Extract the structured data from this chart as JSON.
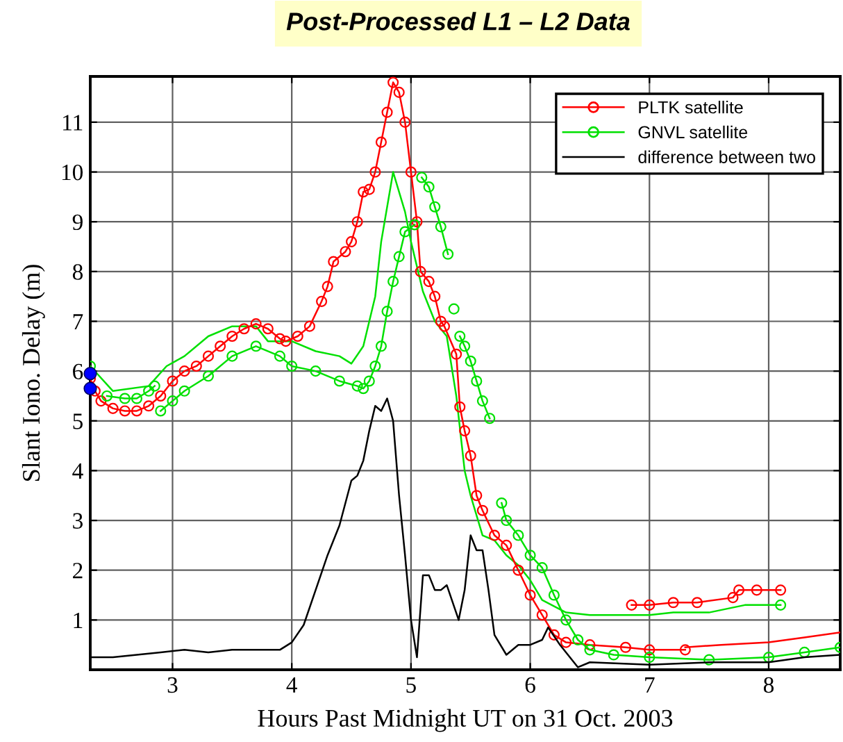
{
  "chart_data": {
    "type": "line",
    "title": "Post-Processed L1 – L2 Data",
    "xlabel": "Hours Past Midnight UT on 31 Oct. 2003",
    "ylabel": "Slant Iono. Delay (m)",
    "xlim": [
      2.31,
      8.6
    ],
    "ylim": [
      0,
      11.92
    ],
    "xticks": [
      3,
      4,
      5,
      6,
      7,
      8
    ],
    "yticks": [
      1,
      2,
      3,
      4,
      5,
      6,
      7,
      8,
      9,
      10,
      11
    ],
    "grid": true,
    "legend": "top right",
    "series": [
      {
        "color": "#00e000",
        "marker": "none",
        "x": [
          2.31,
          2.5,
          2.8,
          2.95,
          3.1,
          3.3,
          3.5,
          3.7,
          3.8,
          4.0,
          4.2,
          4.4,
          4.5,
          4.6,
          4.7,
          4.75,
          4.85,
          4.95,
          5.0,
          5.1,
          5.2,
          5.3,
          5.38,
          5.45,
          5.5,
          5.6,
          5.7,
          5.8,
          5.9,
          6.0,
          6.1,
          6.3,
          6.5,
          7.0,
          7.2,
          7.5,
          7.8,
          8.0,
          8.1
        ],
        "values": [
          6.1,
          5.6,
          5.7,
          6.1,
          6.3,
          6.7,
          6.9,
          6.9,
          6.6,
          6.6,
          6.4,
          6.3,
          6.15,
          6.5,
          7.5,
          8.6,
          10.0,
          9.2,
          8.6,
          7.6,
          7.0,
          6.7,
          5.5,
          4.0,
          3.5,
          2.7,
          2.6,
          2.3,
          2.1,
          1.8,
          1.4,
          1.15,
          1.1,
          1.1,
          1.15,
          1.15,
          1.3,
          1.3,
          1.3
        ]
      },
      {
        "color": "#ff0000",
        "marker": "none",
        "x": [
          7.3,
          7.6,
          8.0,
          8.3,
          8.6
        ],
        "values": [
          0.45,
          0.5,
          0.55,
          0.65,
          0.75
        ]
      },
      {
        "name": "PLTK satellite",
        "color": "#ff0000",
        "marker": "circle",
        "x": [
          2.31,
          2.35,
          2.4,
          2.5,
          2.6,
          2.7,
          2.8,
          2.9,
          3.0,
          3.1,
          3.2,
          3.3,
          3.4,
          3.5,
          3.6,
          3.7,
          3.8,
          3.9,
          3.95,
          4.05,
          4.15,
          4.25,
          4.3,
          4.35,
          4.45,
          4.5,
          4.55,
          4.6,
          4.65,
          4.7,
          4.75,
          4.8,
          4.85,
          4.9,
          4.95,
          5.0,
          5.05,
          5.08,
          5.15,
          5.2,
          5.25,
          5.28,
          5.38,
          5.41,
          5.45,
          5.5,
          5.55,
          5.6,
          5.7,
          5.8,
          5.9,
          6.0,
          6.1,
          6.2,
          6.3,
          6.5,
          6.8,
          7.0,
          7.3,
          null,
          6.85,
          7.0,
          7.2,
          7.4,
          7.7,
          7.75,
          7.9,
          8.1
        ],
        "values": [
          5.85,
          5.6,
          5.4,
          5.25,
          5.2,
          5.2,
          5.3,
          5.5,
          5.8,
          6.0,
          6.1,
          6.3,
          6.5,
          6.7,
          6.85,
          6.95,
          6.85,
          6.65,
          6.6,
          6.7,
          6.9,
          7.4,
          7.7,
          8.2,
          8.4,
          8.6,
          9.0,
          9.6,
          9.65,
          10.0,
          10.6,
          11.2,
          11.8,
          11.6,
          11.0,
          10.0,
          9.0,
          8.0,
          7.8,
          7.5,
          7.0,
          6.9,
          6.34,
          5.28,
          4.8,
          4.3,
          3.5,
          3.2,
          2.7,
          2.5,
          2.0,
          1.5,
          1.1,
          0.7,
          0.55,
          0.5,
          0.45,
          0.4,
          0.4,
          null,
          1.3,
          1.3,
          1.35,
          1.35,
          1.45,
          1.6,
          1.6,
          1.6
        ]
      },
      {
        "name": "GNVL satellite",
        "color": "#00e000",
        "marker": "circle",
        "x": [
          2.31,
          null,
          2.45,
          2.6,
          2.7,
          2.8,
          2.85,
          null,
          2.9,
          3.0,
          3.1,
          3.3,
          3.5,
          3.7,
          3.9,
          4.0,
          4.2,
          4.4,
          4.55,
          4.6,
          4.65,
          4.7,
          4.75,
          4.8,
          4.85,
          4.9,
          4.95,
          5.03,
          null,
          5.09,
          5.15,
          5.2,
          5.25,
          5.31,
          null,
          5.36,
          null,
          5.41,
          5.45,
          5.5,
          5.55,
          5.6,
          5.66,
          null,
          5.76,
          5.8,
          5.9,
          6.0,
          6.1,
          6.2,
          6.3,
          6.4,
          6.5,
          6.7,
          7.0,
          7.5,
          8.0,
          8.3,
          8.6,
          null,
          8.1
        ],
        "values": [
          6.1,
          null,
          5.5,
          5.45,
          5.45,
          5.6,
          5.7,
          null,
          5.2,
          5.4,
          5.6,
          5.9,
          6.3,
          6.5,
          6.3,
          6.1,
          6.0,
          5.8,
          5.7,
          5.65,
          5.8,
          6.1,
          6.5,
          7.2,
          7.8,
          8.3,
          8.8,
          8.94,
          null,
          9.89,
          9.7,
          9.3,
          8.9,
          8.35,
          null,
          7.25,
          null,
          6.7,
          6.5,
          6.2,
          5.8,
          5.4,
          5.05,
          null,
          3.35,
          3.0,
          2.7,
          2.3,
          2.05,
          1.5,
          1.0,
          0.6,
          0.4,
          0.3,
          0.25,
          0.2,
          0.25,
          0.35,
          0.45,
          null,
          1.3
        ]
      },
      {
        "name": "difference between two",
        "color": "#000000",
        "marker": "none",
        "x": [
          2.31,
          2.5,
          2.7,
          2.9,
          3.1,
          3.3,
          3.5,
          3.7,
          3.9,
          4.0,
          4.1,
          4.2,
          4.3,
          4.4,
          4.5,
          4.55,
          4.6,
          4.65,
          4.7,
          4.75,
          4.8,
          4.85,
          4.9,
          4.95,
          5.0,
          5.05,
          5.1,
          5.15,
          5.2,
          5.25,
          5.3,
          5.4,
          5.45,
          5.5,
          5.55,
          5.6,
          5.65,
          5.7,
          5.8,
          5.9,
          6.0,
          6.1,
          6.15,
          6.25,
          6.35,
          6.4,
          6.5,
          7.0,
          7.5,
          8.0,
          8.3,
          8.6
        ],
        "values": [
          0.25,
          0.25,
          0.3,
          0.35,
          0.4,
          0.35,
          0.4,
          0.4,
          0.4,
          0.55,
          0.9,
          1.6,
          2.3,
          2.9,
          3.8,
          3.9,
          4.2,
          4.8,
          5.3,
          5.2,
          5.45,
          5.0,
          3.5,
          2.3,
          1.0,
          0.25,
          1.9,
          1.9,
          1.6,
          1.6,
          1.7,
          1.0,
          1.6,
          2.7,
          2.4,
          2.4,
          1.6,
          0.7,
          0.3,
          0.5,
          0.5,
          0.6,
          0.85,
          0.5,
          0.2,
          0.05,
          0.15,
          0.1,
          0.15,
          0.15,
          0.25,
          0.3
        ]
      },
      {
        "type": "scatter",
        "color": "#0000ff",
        "marker": "circle",
        "x": [
          2.31,
          2.31
        ],
        "values": [
          5.95,
          5.65
        ]
      }
    ]
  }
}
